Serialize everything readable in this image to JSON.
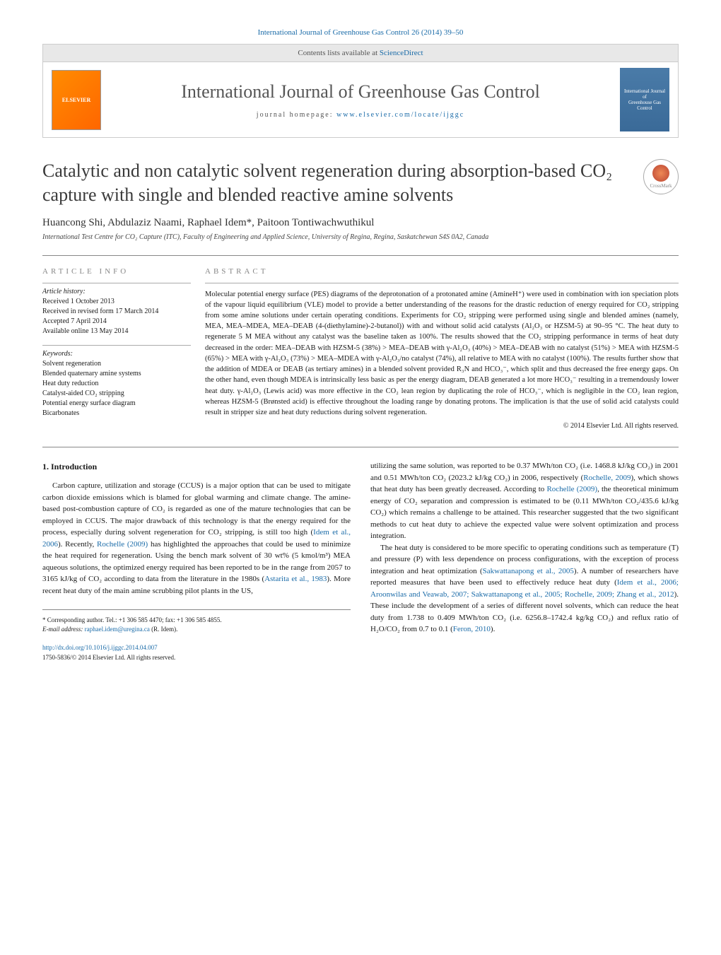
{
  "header": {
    "citation": "International Journal of Greenhouse Gas Control 26 (2014) 39–50",
    "contents_text": "Contents lists available at ",
    "contents_link": "ScienceDirect",
    "journal_title": "International Journal of Greenhouse Gas Control",
    "homepage_prefix": "journal homepage: ",
    "homepage_url": "www.elsevier.com/locate/ijggc",
    "publisher": "ELSEVIER",
    "cover_line1": "International Journal of",
    "cover_line2": "Greenhouse Gas Control",
    "crossmark": "CrossMark"
  },
  "article": {
    "title": "Catalytic and non catalytic solvent regeneration during absorption-based CO₂ capture with single and blended reactive amine solvents",
    "authors": "Huancong Shi, Abdulaziz Naami, Raphael Idem*, Paitoon Tontiwachwuthikul",
    "affiliation": "International Test Centre for CO₂ Capture (ITC), Faculty of Engineering and Applied Science, University of Regina, Regina, Saskatchewan S4S 0A2, Canada"
  },
  "info": {
    "label": "article info",
    "history_label": "Article history:",
    "history": [
      "Received 1 October 2013",
      "Received in revised form 17 March 2014",
      "Accepted 7 April 2014",
      "Available online 13 May 2014"
    ],
    "keywords_label": "Keywords:",
    "keywords": [
      "Solvent regeneration",
      "Blended quaternary amine systems",
      "Heat duty reduction",
      "Catalyst-aided CO₂ stripping",
      "Potential energy surface diagram",
      "Bicarbonates"
    ]
  },
  "abstract": {
    "label": "abstract",
    "text": "Molecular potential energy surface (PES) diagrams of the deprotonation of a protonated amine (AmineH⁺) were used in combination with ion speciation plots of the vapour liquid equilibrium (VLE) model to provide a better understanding of the reasons for the drastic reduction of energy required for CO₂ stripping from some amine solutions under certain operating conditions. Experiments for CO₂ stripping were performed using single and blended amines (namely, MEA, MEA–MDEA, MEA–DEAB (4-(diethylamine)-2-butanol)) with and without solid acid catalysts (Al₂O₃ or HZSM-5) at 90–95 °C. The heat duty to regenerate 5 M MEA without any catalyst was the baseline taken as 100%. The results showed that the CO₂ stripping performance in terms of heat duty decreased in the order: MEA–DEAB with HZSM-5 (38%) > MEA–DEAB with γ-Al₂O₃ (40%) > MEA–DEAB with no catalyst (51%) > MEA with HZSM-5 (65%) > MEA with γ-Al₂O₃ (73%) > MEA–MDEA with γ-Al₂O₃/no catalyst (74%), all relative to MEA with no catalyst (100%). The results further show that the addition of MDEA or DEAB (as tertiary amines) in a blended solvent provided R₃N and HCO₃⁻, which split and thus decreased the free energy gaps. On the other hand, even though MDEA is intrinsically less basic as per the energy diagram, DEAB generated a lot more HCO₃⁻ resulting in a tremendously lower heat duty. γ-Al₂O₃ (Lewis acid) was more effective in the CO₂ lean region by duplicating the role of HCO₃⁻, which is negligible in the CO₂ lean region, whereas HZSM-5 (Brønsted acid) is effective throughout the loading range by donating protons. The implication is that the use of solid acid catalysts could result in stripper size and heat duty reductions during solvent regeneration.",
    "copyright": "© 2014 Elsevier Ltd. All rights reserved."
  },
  "body": {
    "intro_heading": "1. Introduction",
    "col1_p1": "Carbon capture, utilization and storage (CCUS) is a major option that can be used to mitigate carbon dioxide emissions which is blamed for global warming and climate change. The amine-based post-combustion capture of CO₂ is regarded as one of the mature technologies that can be employed in CCUS. The major drawback of this technology is that the energy required for the process, especially during solvent regeneration for CO₂ stripping, is still too high (",
    "col1_ref1": "Idem et al., 2006",
    "col1_p1b": "). Recently, ",
    "col1_ref2": "Rochelle (2009)",
    "col1_p1c": " has highlighted the approaches that could be used to minimize the heat required for regeneration. Using the bench mark solvent of 30 wt% (5 kmol/m³) MEA aqueous solutions, the optimized energy required has been reported to be in the range from 2057 to 3165 kJ/kg of CO₂ according to data from the literature in the 1980s (",
    "col1_ref3": "Astarita et al., 1983",
    "col1_p1d": "). More recent heat duty of the main amine scrubbing pilot plants in the US,",
    "col2_p1": "utilizing the same solution, was reported to be 0.37 MWh/ton CO₂ (i.e. 1468.8 kJ/kg CO₂) in 2001 and 0.51 MWh/ton CO₂ (2023.2 kJ/kg CO₂) in 2006, respectively (",
    "col2_ref1": "Rochelle, 2009",
    "col2_p1b": "), which shows that heat duty has been greatly decreased. According to ",
    "col2_ref2": "Rochelle (2009)",
    "col2_p1c": ", the theoretical minimum energy of CO₂ separation and compression is estimated to be (0.11 MWh/ton CO₂/435.6 kJ/kg CO₂) which remains a challenge to be attained. This researcher suggested that the two significant methods to cut heat duty to achieve the expected value were solvent optimization and process integration.",
    "col2_p2a": "The heat duty is considered to be more specific to operating conditions such as temperature (T) and pressure (P) with less dependence on process configurations, with the exception of process integration and heat optimization (",
    "col2_ref3": "Sakwattanapong et al., 2005",
    "col2_p2b": "). A number of researchers have reported measures that have been used to effectively reduce heat duty (",
    "col2_ref4": "Idem et al., 2006; Aroonwilas and Veawab, 2007; Sakwattanapong et al., 2005; Rochelle, 2009; Zhang et al., 2012",
    "col2_p2c": "). These include the development of a series of different novel solvents, which can reduce the heat duty from 1.738 to 0.409 MWh/ton CO₂ (i.e. 6256.8–1742.4 kg/kg CO₂) and reflux ratio of H₂O/CO₂ from 0.7 to 0.1 (",
    "col2_ref5": "Feron, 2010",
    "col2_p2d": ")."
  },
  "footer": {
    "corresponding": "* Corresponding author. Tel.: +1 306 585 4470; fax: +1 306 585 4855.",
    "email_label": "E-mail address: ",
    "email": "raphael.idem@uregina.ca",
    "email_suffix": " (R. Idem).",
    "doi": "http://dx.doi.org/10.1016/j.ijggc.2014.04.007",
    "issn": "1750-5836/© 2014 Elsevier Ltd. All rights reserved."
  },
  "colors": {
    "link": "#1a6ba8",
    "text": "#1a1a1a",
    "muted": "#888888",
    "border": "#cccccc"
  }
}
